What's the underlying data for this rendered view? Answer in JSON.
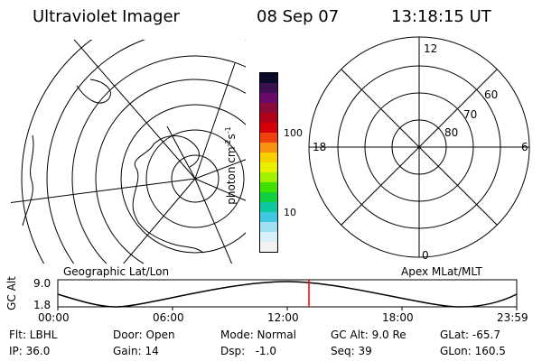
{
  "header": {
    "instrument": "Ultraviolet Imager",
    "date": "08 Sep 07",
    "time": "13:18:15 UT"
  },
  "left_map": {
    "caption": "Geographic Lat/Lon"
  },
  "right_map": {
    "caption": "Apex MLat/MLT",
    "mlt_labels": {
      "top": "12",
      "bottom": "0",
      "left": "18",
      "right": "6"
    },
    "lat_labels": [
      "60",
      "70",
      "80"
    ]
  },
  "colorbar": {
    "unit_label": "photon cm",
    "unit_exp1": "-2",
    "unit_s": "s",
    "unit_exp2": "-1",
    "ticks": [
      "100",
      "10"
    ],
    "colors": [
      "#0a0a2a",
      "#3a1050",
      "#6a0a6a",
      "#8a0a3a",
      "#b0001a",
      "#d4000a",
      "#f04010",
      "#f89010",
      "#f8d000",
      "#e8f000",
      "#a0f000",
      "#40e000",
      "#10d040",
      "#10c8a0",
      "#40c8e0",
      "#a0e0f0",
      "#d8f0f8",
      "#f2f2f2"
    ]
  },
  "alt_strip": {
    "axis_label": "GC Alt",
    "y_ticks": [
      "9.0",
      "1.8"
    ],
    "x_ticks": [
      "00:00",
      "06:00",
      "12:00",
      "18:00",
      "23:59"
    ],
    "marker_color": "#ff0000"
  },
  "info": {
    "flt": "Flt: LBHL",
    "ip": "IP: 36.0",
    "door": "Door: Open",
    "gain": "Gain: 14",
    "mode": "Mode: Normal",
    "dsp": "Dsp:   -1.0",
    "gc_alt": "GC Alt: 9.0 Re",
    "seq": "Seq: 39",
    "glat": "GLat: -65.7",
    "glon": "GLon: 160.5"
  }
}
